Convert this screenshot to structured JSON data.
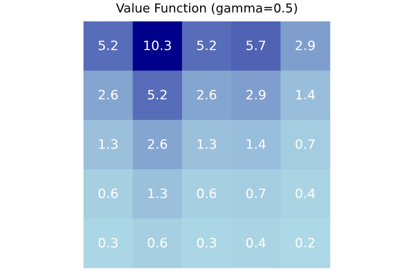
{
  "chart_data": {
    "type": "heatmap",
    "title": "Value Function (gamma=0.5)",
    "rows": 5,
    "cols": 5,
    "values": [
      [
        5.2,
        10.3,
        5.2,
        5.7,
        2.9
      ],
      [
        2.6,
        5.2,
        2.6,
        2.9,
        1.4
      ],
      [
        1.3,
        2.6,
        1.3,
        1.4,
        0.7
      ],
      [
        0.6,
        1.3,
        0.6,
        0.7,
        0.4
      ],
      [
        0.3,
        0.6,
        0.3,
        0.4,
        0.2
      ]
    ],
    "labels": [
      [
        "5.2",
        "10.3",
        "5.2",
        "5.7",
        "2.9"
      ],
      [
        "2.6",
        "5.2",
        "2.6",
        "2.9",
        "1.4"
      ],
      [
        "1.3",
        "2.6",
        "1.3",
        "1.4",
        "0.7"
      ],
      [
        "0.6",
        "1.3",
        "0.6",
        "0.7",
        "0.4"
      ],
      [
        "0.3",
        "0.6",
        "0.3",
        "0.4",
        "0.2"
      ]
    ],
    "colormap": {
      "low": "#add8e6",
      "high": "#00008b"
    },
    "grid": false,
    "legend": "none"
  }
}
